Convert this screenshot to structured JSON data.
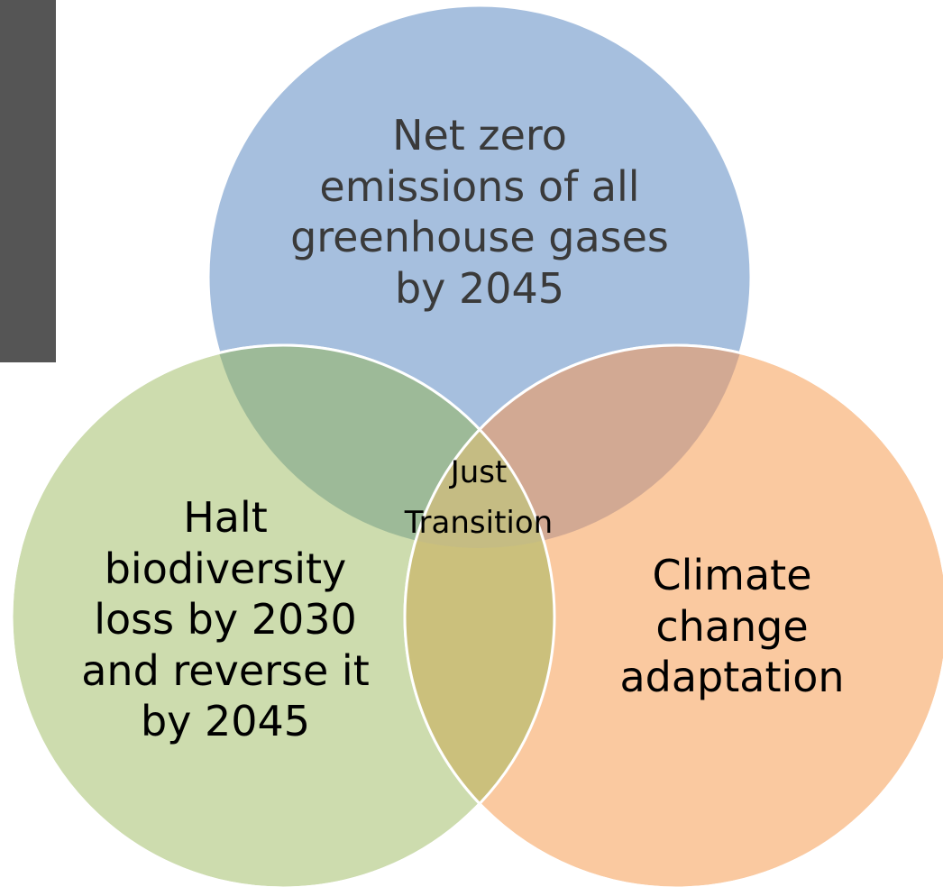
{
  "diagram": {
    "circles": [
      {
        "name": "top",
        "label": "Net zero\nemissions of all\ngreenhouse gases\nby 2045",
        "color": "#a6bfde"
      },
      {
        "name": "left",
        "label": "Halt\nbiodiversity\nloss by 2030\nand reverse it\nby 2045",
        "color": "#cddcae"
      },
      {
        "name": "right",
        "label": "Climate\nchange\nadaptation",
        "color": "#fac9a0"
      }
    ],
    "center_label": "Just\nTransition",
    "overlap_colors": {
      "top_left": "#9dba98",
      "top_right": "#d2a993",
      "left_right": "#cbc07c",
      "all": "#c5bc83"
    },
    "sidebar_color": "#555555"
  }
}
